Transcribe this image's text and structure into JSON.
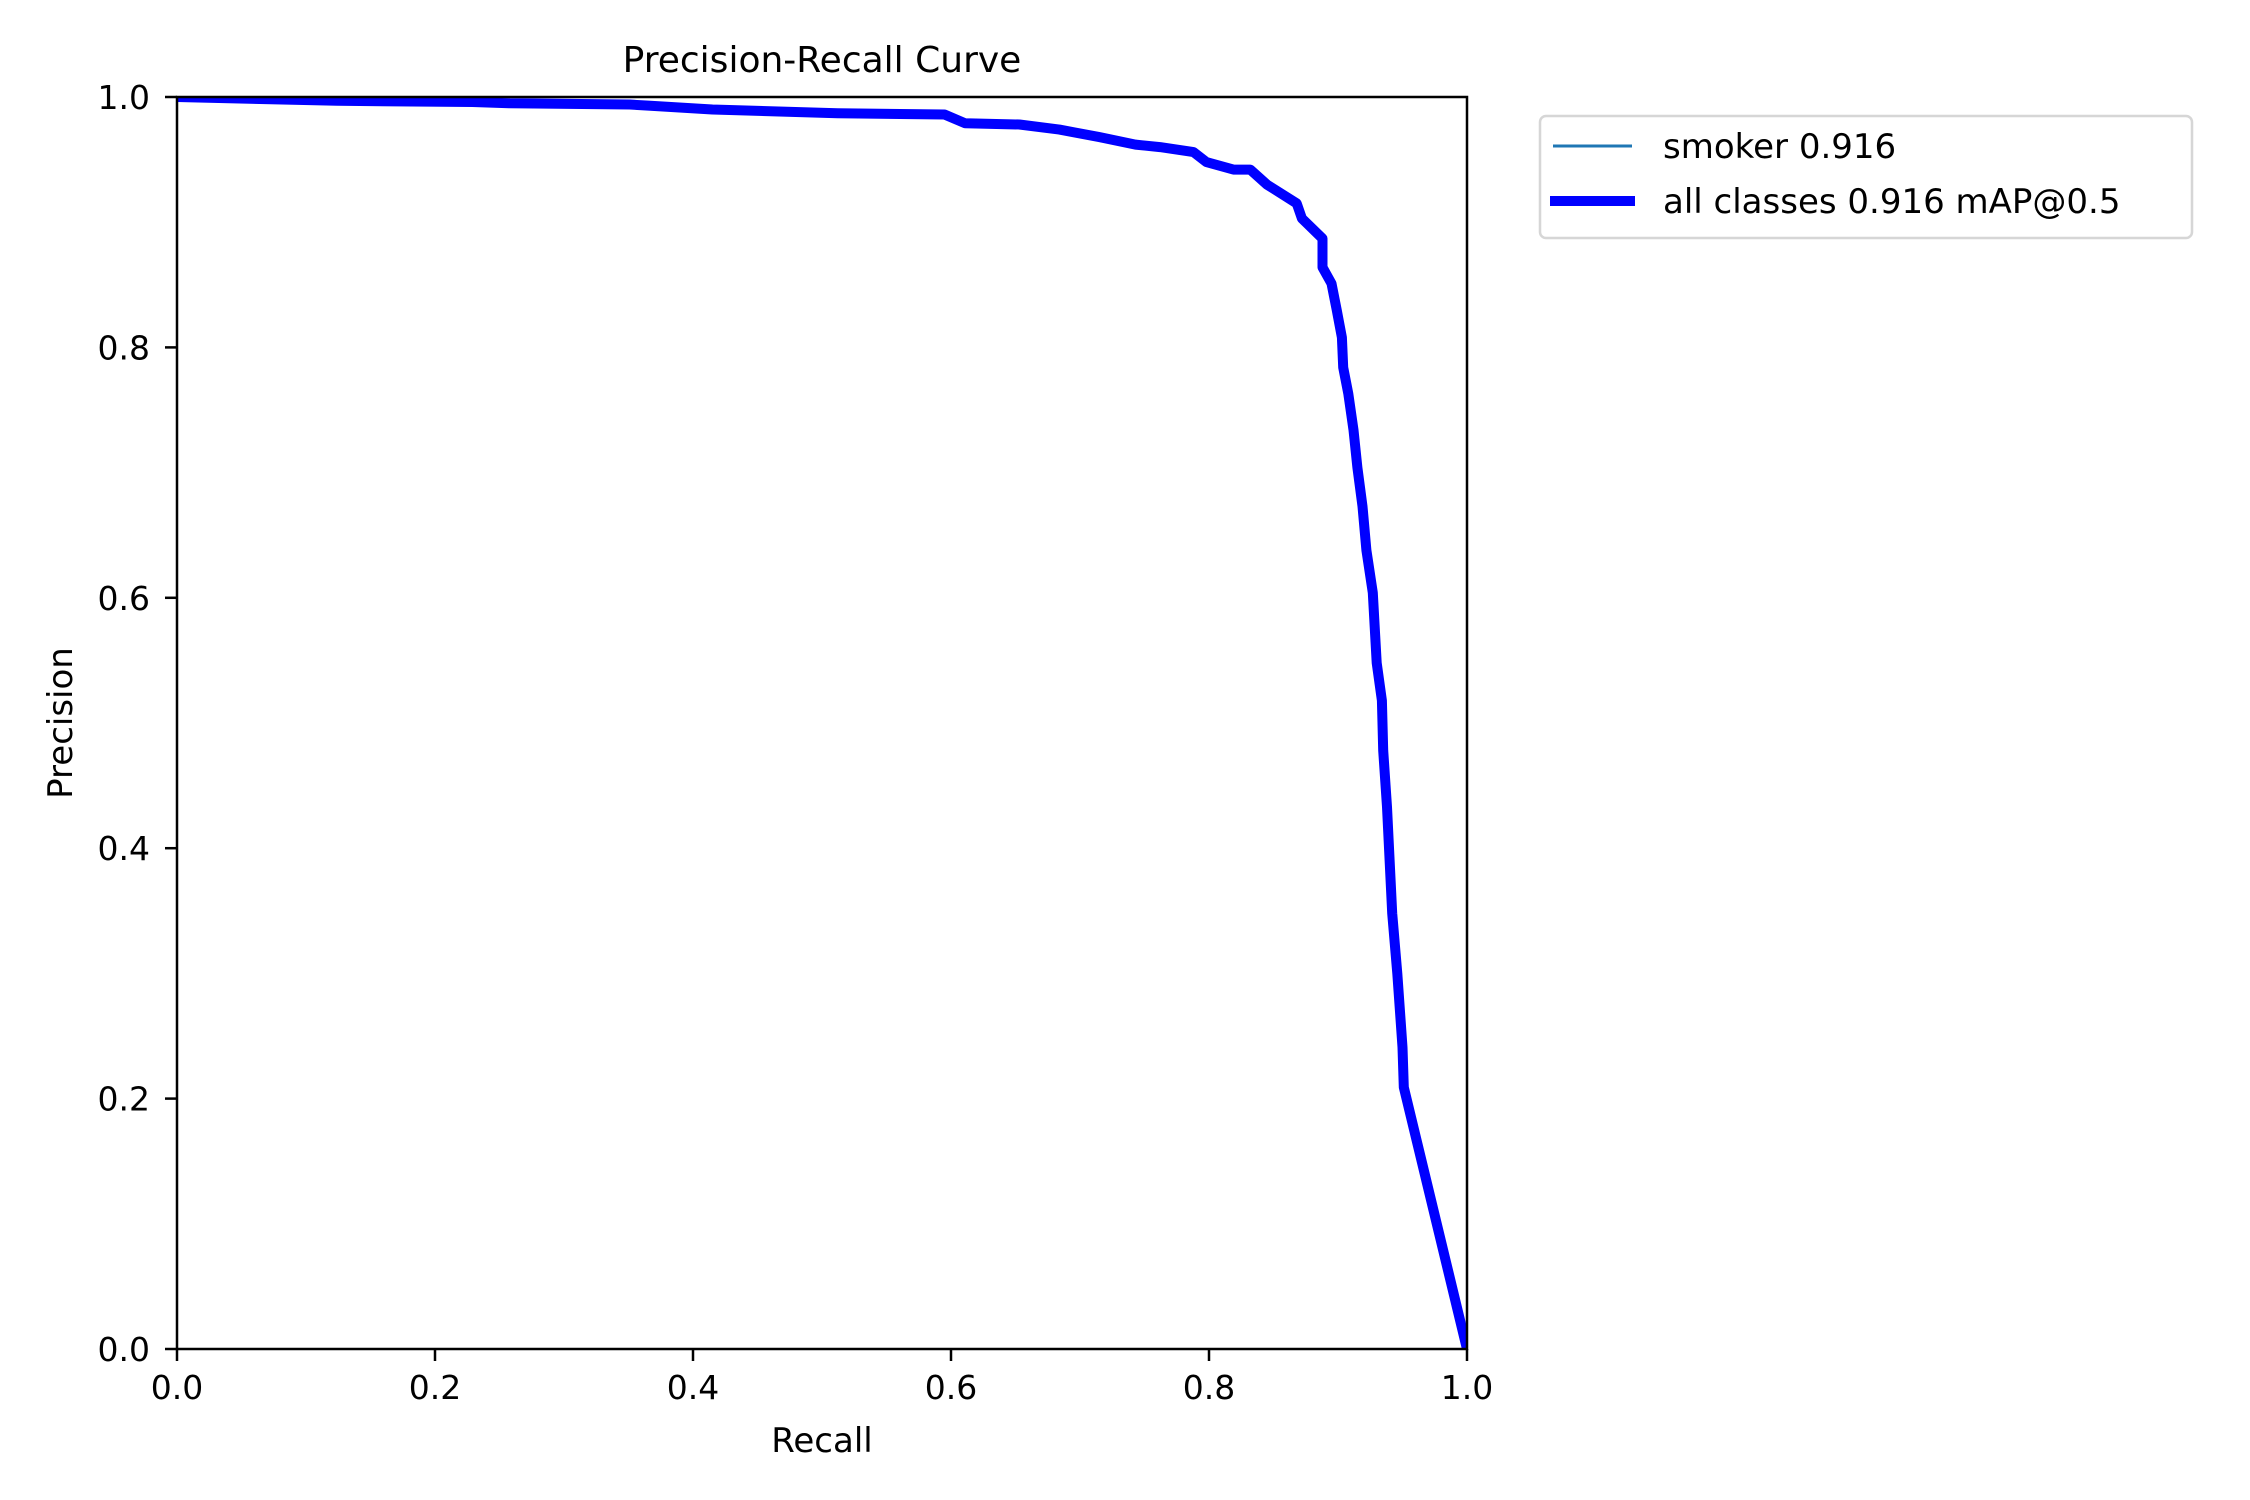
{
  "chart_data": {
    "type": "line",
    "title": "Precision-Recall Curve",
    "xlabel": "Recall",
    "ylabel": "Precision",
    "xlim": [
      0.0,
      1.0
    ],
    "ylim": [
      0.0,
      1.0
    ],
    "grid": false,
    "legend_position": "outside upper right",
    "x_ticks": [
      "0.0",
      "0.2",
      "0.4",
      "0.6",
      "0.8",
      "1.0"
    ],
    "y_ticks": [
      "0.0",
      "0.2",
      "0.4",
      "0.6",
      "0.8",
      "1.0"
    ],
    "series": [
      {
        "name": "smoker 0.916",
        "color": "#1f77b4",
        "linewidth": 1,
        "x": [
          0.0,
          0.124,
          0.229,
          0.258,
          0.351,
          0.367,
          0.415,
          0.512,
          0.595,
          0.611,
          0.653,
          0.684,
          0.715,
          0.743,
          0.762,
          0.788,
          0.798,
          0.819,
          0.832,
          0.845,
          0.868,
          0.872,
          0.888,
          0.888,
          0.895,
          0.899,
          0.903,
          0.904,
          0.908,
          0.912,
          0.915,
          0.919,
          0.922,
          0.927,
          0.93,
          0.934,
          0.935,
          0.938,
          0.942,
          0.946,
          0.95,
          0.951,
          1.0
        ],
        "y": [
          1.0,
          0.997,
          0.996,
          0.995,
          0.994,
          0.993,
          0.99,
          0.987,
          0.986,
          0.979,
          0.978,
          0.974,
          0.968,
          0.962,
          0.96,
          0.956,
          0.948,
          0.942,
          0.942,
          0.93,
          0.915,
          0.903,
          0.887,
          0.864,
          0.851,
          0.83,
          0.808,
          0.784,
          0.763,
          0.734,
          0.704,
          0.673,
          0.638,
          0.604,
          0.548,
          0.518,
          0.478,
          0.433,
          0.348,
          0.3,
          0.241,
          0.209,
          0.0
        ]
      },
      {
        "name": "all classes 0.916 mAP@0.5",
        "color": "#0000ff",
        "linewidth": 3,
        "x": [
          0.0,
          0.124,
          0.229,
          0.258,
          0.351,
          0.367,
          0.415,
          0.512,
          0.595,
          0.611,
          0.653,
          0.684,
          0.715,
          0.743,
          0.762,
          0.788,
          0.798,
          0.819,
          0.832,
          0.845,
          0.868,
          0.872,
          0.888,
          0.888,
          0.895,
          0.899,
          0.903,
          0.904,
          0.908,
          0.912,
          0.915,
          0.919,
          0.922,
          0.927,
          0.93,
          0.934,
          0.935,
          0.938,
          0.942,
          0.946,
          0.95,
          0.951,
          1.0
        ],
        "y": [
          1.0,
          0.997,
          0.996,
          0.995,
          0.994,
          0.993,
          0.99,
          0.987,
          0.986,
          0.979,
          0.978,
          0.974,
          0.968,
          0.962,
          0.96,
          0.956,
          0.948,
          0.942,
          0.942,
          0.93,
          0.915,
          0.903,
          0.887,
          0.864,
          0.851,
          0.83,
          0.808,
          0.784,
          0.763,
          0.734,
          0.704,
          0.673,
          0.638,
          0.604,
          0.548,
          0.518,
          0.478,
          0.433,
          0.348,
          0.3,
          0.241,
          0.209,
          0.0
        ]
      }
    ],
    "legend": [
      {
        "label": "smoker 0.916",
        "color": "#1f77b4"
      },
      {
        "label": "all classes 0.916 mAP@0.5",
        "color": "#0000ff"
      }
    ]
  }
}
